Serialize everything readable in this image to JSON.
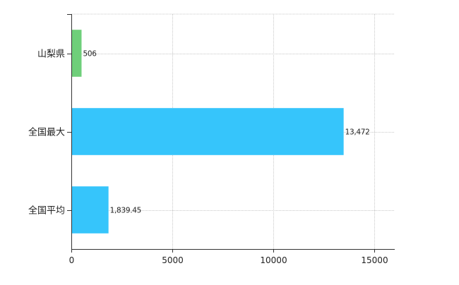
{
  "chart_data": {
    "type": "bar",
    "orientation": "horizontal",
    "categories": [
      "山梨県",
      "全国最大",
      "全国平均"
    ],
    "values": [
      506,
      13472,
      1839.45
    ],
    "value_labels": [
      "506",
      "13,472",
      "1,839.45"
    ],
    "bar_colors": [
      "#6fcf7a",
      "#36c5fb",
      "#36c5fb"
    ],
    "title": "",
    "xlabel": "",
    "ylabel": "",
    "xlim": [
      0,
      16000
    ],
    "xticks": [
      0,
      5000,
      10000,
      15000
    ],
    "grid": true,
    "legend": "none"
  }
}
